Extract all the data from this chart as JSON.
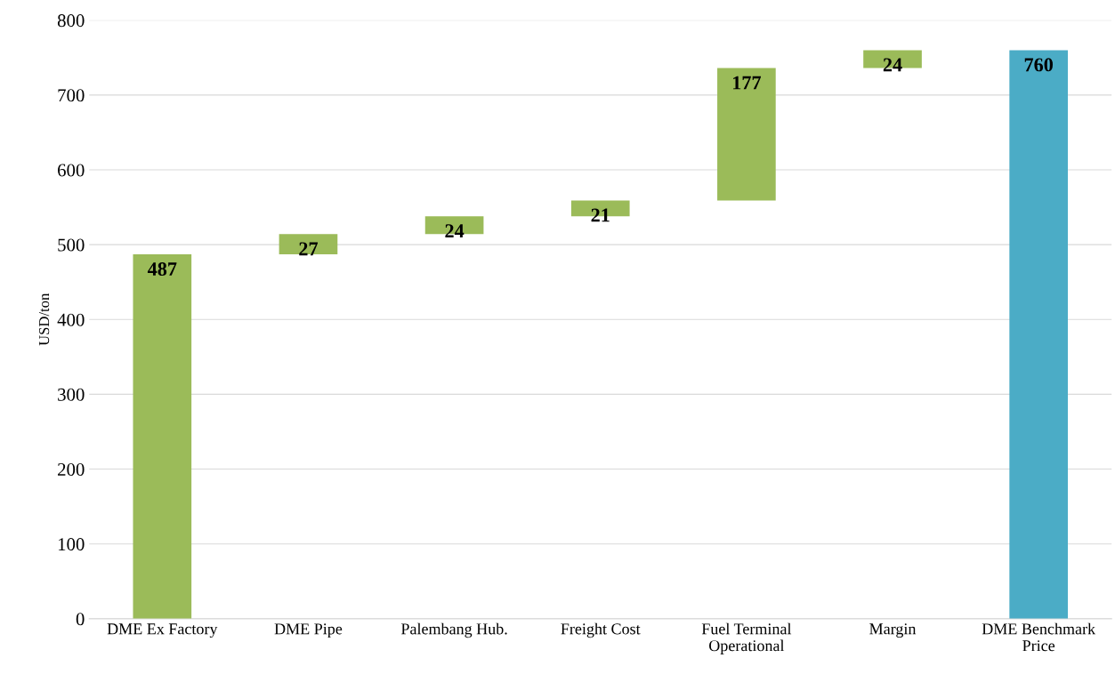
{
  "chart_data": {
    "type": "bar",
    "ylabel": "USD/ton",
    "categories": [
      "DME Ex Factory",
      "DME Pipe",
      "Palembang Hub.",
      "Freight Cost",
      "Fuel Terminal\nOperational",
      "Margin",
      "DME Benchmark\nPrice"
    ],
    "values": [
      487,
      27,
      24,
      21,
      177,
      24,
      760
    ],
    "base": [
      0,
      487,
      514,
      538,
      559,
      736,
      0
    ],
    "colors": [
      "#9bbb59",
      "#9bbb59",
      "#9bbb59",
      "#9bbb59",
      "#9bbb59",
      "#9bbb59",
      "#4bacc6"
    ],
    "ylim": [
      0,
      800
    ],
    "yticks": [
      0,
      100,
      200,
      300,
      400,
      500,
      600,
      700,
      800
    ],
    "grid": "y",
    "data_labels": true,
    "legend": false
  }
}
